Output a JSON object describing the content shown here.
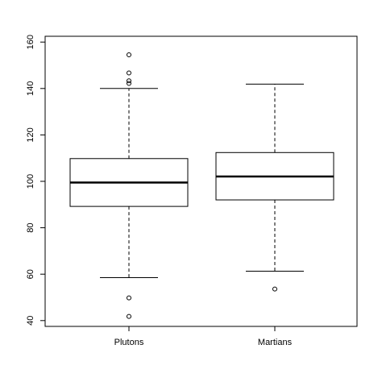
{
  "chart_data": {
    "type": "box",
    "categories": [
      "Plutons",
      "Martians"
    ],
    "boxes": [
      {
        "min": 58.5,
        "q1": 89.2,
        "median": 99.5,
        "q3": 109.8,
        "max": 140,
        "outliers": [
          154.5,
          146.7,
          143.3,
          142.2,
          49.8,
          41.8
        ]
      },
      {
        "min": 61.3,
        "q1": 92,
        "median": 102.1,
        "q3": 112.4,
        "max": 141.9,
        "outliers": [
          53.6
        ]
      }
    ],
    "color": "#000000",
    "ylim": [
      37.5,
      162.5
    ],
    "yticks": [
      40,
      60,
      80,
      100,
      120,
      140,
      160
    ]
  }
}
